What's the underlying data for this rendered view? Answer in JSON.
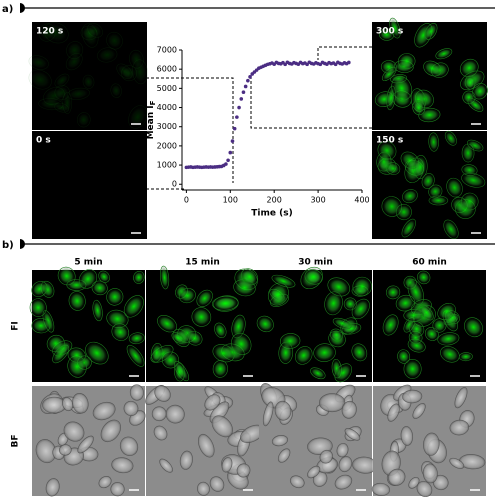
{
  "panels": {
    "a": {
      "label": "a)",
      "images": [
        "120 s",
        "0 s",
        "300 s",
        "150 s"
      ]
    },
    "b": {
      "label": "b)",
      "columns": [
        "5 min",
        "15 min",
        "30 min",
        "60 min"
      ],
      "rows": [
        "FI",
        "BF"
      ]
    }
  },
  "chart_data": {
    "type": "scatter",
    "x_label": "Time (s)",
    "y_label": {
      "text": "Mean I",
      "subscript": "F"
    },
    "color": "#4b2d83",
    "x": [
      0,
      5,
      10,
      15,
      20,
      25,
      30,
      35,
      40,
      45,
      50,
      55,
      60,
      65,
      70,
      75,
      80,
      85,
      90,
      95,
      100,
      105,
      110,
      115,
      120,
      125,
      130,
      135,
      140,
      145,
      150,
      155,
      160,
      165,
      170,
      175,
      180,
      185,
      190,
      195,
      200,
      205,
      210,
      215,
      220,
      225,
      230,
      235,
      240,
      245,
      250,
      255,
      260,
      265,
      270,
      275,
      280,
      285,
      290,
      295,
      300,
      305,
      310,
      315,
      320,
      325,
      330,
      335,
      340,
      345,
      350,
      355,
      360,
      365,
      370
    ],
    "values": [
      880,
      890,
      900,
      880,
      890,
      900,
      890,
      880,
      890,
      900,
      890,
      900,
      890,
      900,
      910,
      920,
      930,
      980,
      1050,
      1250,
      1650,
      2250,
      2900,
      3500,
      4000,
      4450,
      4800,
      5100,
      5400,
      5600,
      5750,
      5850,
      5950,
      6050,
      6100,
      6150,
      6200,
      6250,
      6280,
      6320,
      6260,
      6350,
      6300,
      6280,
      6340,
      6250,
      6360,
      6300,
      6270,
      6340,
      6300,
      6260,
      6350,
      6290,
      6320,
      6250,
      6360,
      6300,
      6270,
      6330,
      6290,
      6250,
      6350,
      6300,
      6260,
      6340,
      6290,
      6320,
      6250,
      6360,
      6300,
      6270,
      6330,
      6290,
      6350
    ],
    "xlim": [
      -10,
      400
    ],
    "ylim": [
      -300,
      7000
    ],
    "xticks": [
      0,
      100,
      200,
      300,
      400
    ],
    "yticks": [
      0,
      1000,
      2000,
      3000,
      4000,
      5000,
      6000,
      7000
    ]
  }
}
